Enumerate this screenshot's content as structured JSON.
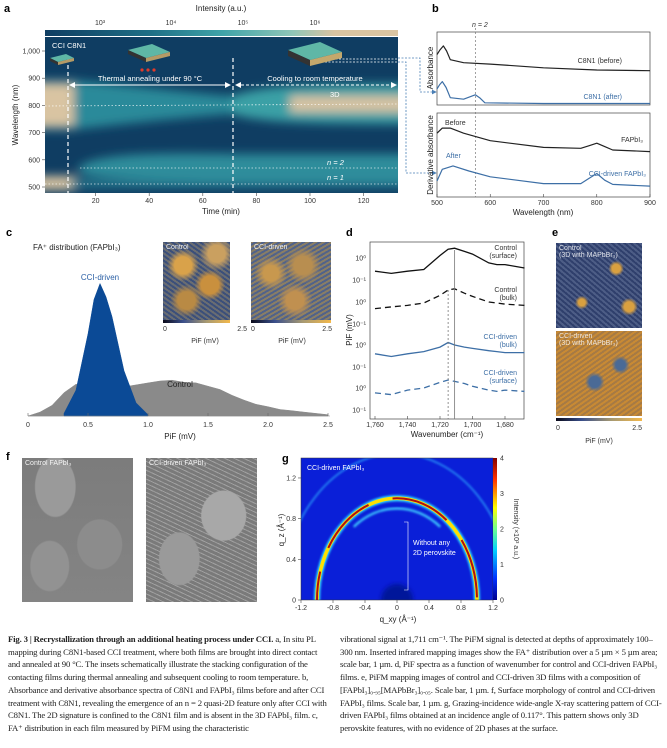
{
  "panels": {
    "a": {
      "label": "a",
      "inset_title": "CCI C8N1",
      "annealing": "Thermal annealing under 90 °C",
      "cooling": "Cooling to room temperature",
      "band_3d": "3D",
      "band_n2": "n = 2",
      "band_n1": "n = 1"
    },
    "b": {
      "label": "b",
      "n2_label": "n = 2",
      "top_ylabel": "Absorbance",
      "bottom_ylabel": "Derivative absorbance",
      "before": "Before",
      "after": "After",
      "c8n1_before": "C8N1 (before)",
      "c8n1_after": "C8N1 (after)",
      "fapbi3": "FAPbI₃",
      "cci_fapbi3": "CCI-driven FAPbI₃"
    },
    "c": {
      "label": "c",
      "title": "FA⁺ distribution (FAPbI₃)",
      "cci": "CCI-driven",
      "control": "Control",
      "inset_control": "Control",
      "inset_cci": "CCI-driven",
      "inset_cbar_min": "0",
      "inset_cbar_max": "2.5",
      "inset_cbar_label": "PiF (mV)"
    },
    "d": {
      "label": "d",
      "control_surface": [
        "Control",
        "(surface)"
      ],
      "control_bulk": [
        "Control",
        "(bulk)"
      ],
      "cci_bulk": [
        "CCI-driven",
        "(bulk)"
      ],
      "cci_surface": [
        "CCI-driven",
        "(surface)"
      ]
    },
    "e": {
      "label": "e",
      "control": [
        "Control",
        "(3D with MAPbBr₃)"
      ],
      "cci": [
        "CCI-driven",
        "(3D with MAPbBr₃)"
      ],
      "cbar_min": "0",
      "cbar_max": "2.5",
      "cbar_label": "PiF (mV)"
    },
    "f": {
      "label": "f",
      "control": "Control FAPbI₃",
      "cci": "CCI-driven FAPbI₃"
    },
    "g": {
      "label": "g",
      "title": "CCI-driven FAPbI₃",
      "annotation": [
        "Without any",
        "2D perovskite"
      ]
    }
  },
  "chart_data": [
    {
      "panel": "a",
      "type": "heatmap",
      "xlabel": "Time (min)",
      "ylabel": "Wavelength (nm)",
      "xlim": [
        0,
        132
      ],
      "ylim": [
        478,
        1050
      ],
      "xticks": [
        20,
        40,
        60,
        80,
        100,
        120
      ],
      "yticks": [
        500,
        600,
        700,
        800,
        900,
        1000
      ],
      "ytick_labels": [
        "500",
        "600",
        "700",
        "800",
        "900",
        "1,000"
      ],
      "colorbar": {
        "label": "Intensity (a.u.)",
        "scale": "log",
        "ticks": [
          "10³",
          "10⁴",
          "10⁵",
          "10⁶"
        ],
        "colors": [
          "#0f3d62",
          "#1f6f86",
          "#3fa3a8",
          "#8fc6b8",
          "#d9c4a2"
        ]
      },
      "events_min": [
        10,
        70
      ],
      "bands_nm": {
        "3D": 805,
        "n = 2": 570,
        "n = 1": 512
      }
    },
    {
      "panel": "b",
      "type": "line",
      "xlabel": "Wavelength (nm)",
      "xlim": [
        500,
        900
      ],
      "xticks": [
        500,
        600,
        700,
        800,
        900
      ],
      "n2_nm": 572,
      "top": [
        {
          "name": "C8N1 (before)",
          "color": "#222222",
          "x": [
            500,
            505,
            512,
            518,
            525,
            550,
            600,
            700,
            800,
            900
          ],
          "y": [
            0.69,
            0.75,
            0.81,
            0.74,
            0.62,
            0.58,
            0.56,
            0.51,
            0.48,
            0.47
          ]
        },
        {
          "name": "C8N1 (after)",
          "color": "#3d6fa6",
          "x": [
            500,
            505,
            510,
            517,
            525,
            550,
            565,
            572,
            580,
            590,
            700,
            900
          ],
          "y": [
            0.22,
            0.28,
            0.32,
            0.24,
            0.1,
            0.08,
            0.12,
            0.14,
            0.1,
            0.03,
            0.02,
            0.02
          ]
        }
      ],
      "bottom": [
        {
          "name": "FAPbI₃",
          "color": "#222222",
          "x": [
            500,
            510,
            525,
            550,
            600,
            700,
            770,
            785,
            800,
            815,
            830,
            900
          ],
          "y": [
            0.76,
            0.82,
            0.82,
            0.76,
            0.67,
            0.59,
            0.58,
            0.61,
            0.64,
            0.6,
            0.56,
            0.54
          ]
        },
        {
          "name": "CCI-driven FAPbI₃",
          "color": "#3d6fa6",
          "x": [
            500,
            510,
            530,
            560,
            600,
            700,
            770,
            785,
            800,
            815,
            830,
            900
          ],
          "y": [
            0.19,
            0.33,
            0.37,
            0.31,
            0.24,
            0.16,
            0.16,
            0.22,
            0.28,
            0.2,
            0.15,
            0.13
          ]
        }
      ]
    },
    {
      "panel": "c",
      "type": "area",
      "xlabel": "PiF (mV)",
      "xlim": [
        0,
        2.6
      ],
      "xticks": [
        "0",
        "0.5",
        "1.0",
        "1.5",
        "2.0",
        "2.5"
      ],
      "series": [
        {
          "name": "Control",
          "color": "#8a8a8a",
          "x": [
            0,
            0.1,
            0.2,
            0.3,
            0.4,
            0.5,
            0.6,
            0.7,
            0.8,
            0.9,
            1.0,
            1.1,
            1.2,
            1.3,
            1.4,
            1.5,
            1.6,
            1.7,
            1.8,
            1.9,
            2.0,
            2.1,
            2.2,
            2.3,
            2.4,
            2.5
          ],
          "y": [
            0,
            0.03,
            0.08,
            0.18,
            0.24,
            0.22,
            0.2,
            0.2,
            0.22,
            0.24,
            0.25,
            0.27,
            0.27,
            0.26,
            0.25,
            0.23,
            0.2,
            0.16,
            0.12,
            0.09,
            0.07,
            0.05,
            0.04,
            0.03,
            0.02,
            0.01
          ]
        },
        {
          "name": "CCI-driven",
          "color": "#0b4a96",
          "x": [
            0.3,
            0.4,
            0.5,
            0.55,
            0.6,
            0.65,
            0.7,
            0.8,
            0.9,
            1.0
          ],
          "y": [
            0.02,
            0.2,
            0.62,
            0.9,
            1.0,
            0.92,
            0.75,
            0.35,
            0.1,
            0.01
          ]
        }
      ]
    },
    {
      "panel": "d",
      "type": "line",
      "xlabel": "Wavenumber (cm⁻¹)",
      "ylabel": "PiF (mV)",
      "yscale": "log",
      "xlim": [
        1760,
        1668
      ],
      "xticks": [
        "1,760",
        "1,740",
        "1,720",
        "1,700",
        "1,680"
      ],
      "ytick_labels": [
        "10⁰",
        "10⁻¹"
      ],
      "markers_cm": {
        "solid": 1711,
        "dashed": 1715
      },
      "x": [
        1760,
        1750,
        1740,
        1730,
        1720,
        1715,
        1711,
        1705,
        1700,
        1690,
        1685,
        1680,
        1668
      ],
      "series": [
        {
          "name": "Control (surface)",
          "color": "#111111",
          "dash": false,
          "y": [
            0.25,
            0.2,
            0.25,
            0.3,
            1.3,
            2.5,
            2.8,
            2.0,
            1.5,
            0.6,
            0.5,
            0.5,
            0.35
          ]
        },
        {
          "name": "Control (bulk)",
          "color": "#111111",
          "dash": true,
          "y": [
            0.5,
            0.6,
            0.7,
            0.9,
            2.0,
            3.5,
            4.0,
            2.5,
            1.8,
            1.0,
            0.9,
            0.8,
            0.7
          ]
        },
        {
          "name": "CCI-driven (bulk)",
          "color": "#3d6fa6",
          "dash": false,
          "y": [
            0.4,
            0.3,
            0.4,
            0.5,
            0.8,
            1.3,
            1.0,
            0.8,
            0.7,
            0.55,
            0.5,
            0.45,
            0.45
          ]
        },
        {
          "name": "CCI-driven (surface)",
          "color": "#3d6fa6",
          "dash": true,
          "y": [
            0.6,
            0.5,
            0.8,
            1.0,
            1.8,
            2.3,
            2.0,
            1.6,
            1.2,
            0.8,
            0.7,
            0.8,
            0.7
          ]
        }
      ]
    },
    {
      "panel": "g",
      "type": "heatmap",
      "xlabel": "q_xy (Å⁻¹)",
      "ylabel": "q_z (Å⁻¹)",
      "xlim": [
        -1.2,
        1.2
      ],
      "ylim": [
        0,
        1.4
      ],
      "xticks": [
        "-1.2",
        "-0.8",
        "-0.4",
        "0",
        "0.4",
        "0.8",
        "1.2"
      ],
      "yticks": [
        "0",
        "0.4",
        "0.8",
        "1.2"
      ],
      "colorbar": {
        "label": "Intensity (×10³ a.u.)",
        "ticks": [
          "0",
          "1",
          "2",
          "3",
          "4"
        ]
      },
      "rings_q": [
        {
          "q": 1.0,
          "intensity": 4
        },
        {
          "q": 0.9,
          "intensity": 1.5
        },
        {
          "q": 1.44,
          "intensity": 1
        }
      ]
    }
  ],
  "caption": {
    "bold": "Fig. 3 | Recrystallization through an additional heating process under CCI.",
    "left": " a, In situ PL mapping during C8N1-based CCI treatment, where both films are brought into direct contact and annealed at 90 °C. The insets schematically illustrate the stacking configuration of the contacting films during thermal annealing and subsequent cooling to room temperature. b, Absorbance and derivative absorbance spectra of C8N1 and FAPbI₃ films before and after CCI treatment with C8N1, revealing the emergence of an n = 2 quasi-2D feature only after CCI with C8N1. The 2D signature is confined to the C8N1 film and is absent in the 3D FAPbI₃ film. c, FA⁺ distribution in each film measured by PiFM using the characteristic",
    "right": "vibrational signal at 1,711 cm⁻¹. The PiFM signal is detected at depths of approximately 100–300 nm. Inserted infrared mapping images show the FA⁺ distribution over a 5 µm × 5 µm area; scale bar, 1 µm. d, PiF spectra as a function of wavenumber for control and CCI-driven FAPbI₃ films. e, PiFM mapping images of control and CCI-driven 3D films with a composition of [FAPbI₃]₀.₉₅[MAPbBr₃]₀.₀₅. Scale bar, 1 µm. f, Surface morphology of control and CCI-driven FAPbI₃ films. Scale bar, 1 µm. g, Grazing-incidence wide-angle X-ray scattering pattern of CCI-driven FAPbI₃ films obtained at an incidence angle of 0.117°. This pattern shows only 3D perovskite features, with no evidence of 2D phases at the surface."
  }
}
